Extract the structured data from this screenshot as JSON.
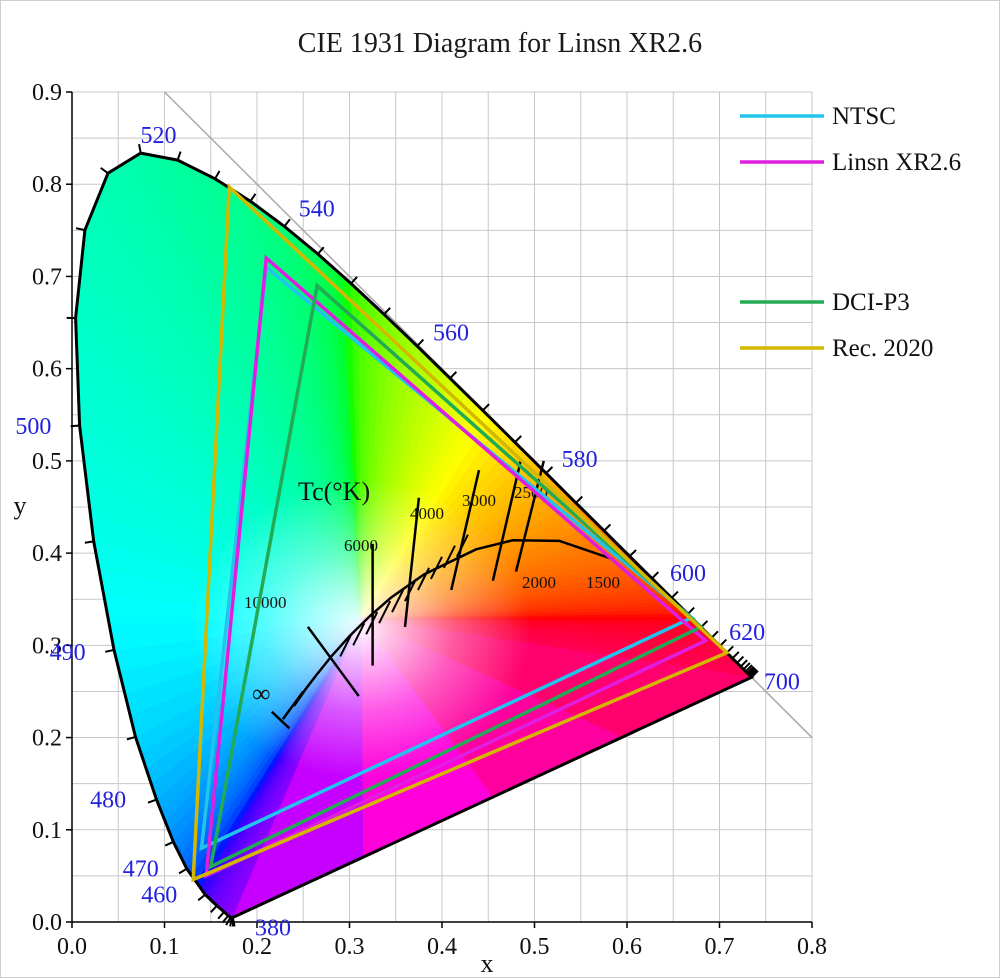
{
  "title": "CIE 1931 Diagram for Linsn XR2.6",
  "chart_data": {
    "type": "scatter",
    "title": "CIE 1931 Diagram for Linsn XR2.6",
    "xlabel": "x",
    "ylabel": "y",
    "xlim": [
      0.0,
      0.8
    ],
    "ylim": [
      0.0,
      0.9
    ],
    "x_ticks": [
      "0.0",
      "0.1",
      "0.2",
      "0.3",
      "0.4",
      "0.5",
      "0.6",
      "0.7",
      "0.8"
    ],
    "y_ticks": [
      "0.0",
      "0.1",
      "0.2",
      "0.3",
      "0.4",
      "0.5",
      "0.6",
      "0.7",
      "0.8",
      "0.9"
    ],
    "grid": true,
    "legend_position": "right",
    "series": [
      {
        "name": "NTSC",
        "color": "#22c4ee",
        "points": [
          [
            0.67,
            0.33
          ],
          [
            0.21,
            0.71
          ],
          [
            0.14,
            0.08
          ]
        ]
      },
      {
        "name": "Linsn XR2.6",
        "color": "#e01ee0",
        "points": [
          [
            0.685,
            0.305
          ],
          [
            0.21,
            0.72
          ],
          [
            0.145,
            0.05
          ]
        ]
      },
      {
        "name": "DCI-P3",
        "color": "#22aa55",
        "points": [
          [
            0.68,
            0.32
          ],
          [
            0.265,
            0.69
          ],
          [
            0.15,
            0.06
          ]
        ]
      },
      {
        "name": "Rec. 2020",
        "color": "#d4b800",
        "points": [
          [
            0.708,
            0.292
          ],
          [
            0.17,
            0.797
          ],
          [
            0.131,
            0.046
          ]
        ]
      }
    ],
    "wavelength_labels": [
      {
        "text": "380",
        "x": 0.174,
        "y": 0.005
      },
      {
        "text": "460",
        "x": 0.144,
        "y": 0.03
      },
      {
        "text": "470",
        "x": 0.124,
        "y": 0.058
      },
      {
        "text": "480",
        "x": 0.091,
        "y": 0.133
      },
      {
        "text": "490",
        "x": 0.045,
        "y": 0.295
      },
      {
        "text": "500",
        "x": 0.008,
        "y": 0.538
      },
      {
        "text": "520",
        "x": 0.074,
        "y": 0.834
      },
      {
        "text": "540",
        "x": 0.23,
        "y": 0.754
      },
      {
        "text": "560",
        "x": 0.373,
        "y": 0.624
      },
      {
        "text": "580",
        "x": 0.512,
        "y": 0.487
      },
      {
        "text": "600",
        "x": 0.627,
        "y": 0.372
      },
      {
        "text": "620",
        "x": 0.691,
        "y": 0.308
      },
      {
        "text": "700",
        "x": 0.735,
        "y": 0.265
      }
    ],
    "cct_labels": [
      "10000",
      "6000",
      "4000",
      "3000",
      "2500",
      "2000",
      "1500"
    ],
    "cct_axis_label": "Tc(°K)",
    "infinity_label": "∞"
  }
}
